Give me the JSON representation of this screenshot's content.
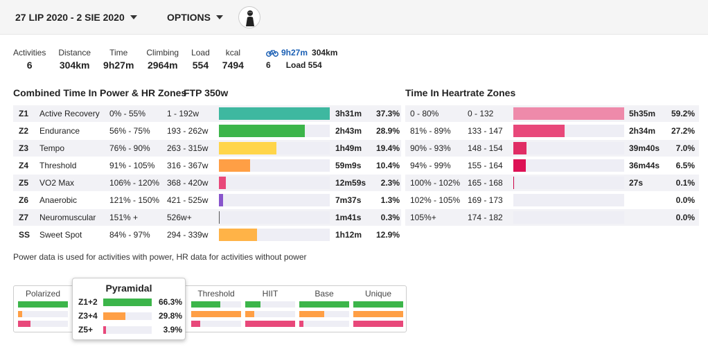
{
  "header": {
    "date_range": "27 LIP 2020 - 2 SIE 2020",
    "options_label": "OPTIONS"
  },
  "stats": [
    {
      "label": "Activities",
      "value": "6"
    },
    {
      "label": "Distance",
      "value": "304km"
    },
    {
      "label": "Time",
      "value": "9h27m"
    },
    {
      "label": "Climbing",
      "value": "2964m"
    },
    {
      "label": "Load",
      "value": "554"
    },
    {
      "label": "kcal",
      "value": "7494"
    }
  ],
  "activity": {
    "icon": "bike-icon",
    "time": "9h27m",
    "distance": "304km",
    "count": "6",
    "load": "Load 554"
  },
  "power": {
    "title": "Combined Time In Power & HR Zones",
    "ftp": "FTP 350w",
    "rows": [
      {
        "zone": "Z1",
        "name": "Active Recovery",
        "pct_range": "0% - 55%",
        "watts": "1 - 192w",
        "time": "3h31m",
        "pct": "37.3%",
        "fill": 1.0,
        "color": "#3eb8a0"
      },
      {
        "zone": "Z2",
        "name": "Endurance",
        "pct_range": "56% - 75%",
        "watts": "193 - 262w",
        "time": "2h43m",
        "pct": "28.9%",
        "fill": 0.775,
        "color": "#3cb54a"
      },
      {
        "zone": "Z3",
        "name": "Tempo",
        "pct_range": "76% - 90%",
        "watts": "263 - 315w",
        "time": "1h49m",
        "pct": "19.4%",
        "fill": 0.52,
        "color": "#ffd54a"
      },
      {
        "zone": "Z4",
        "name": "Threshold",
        "pct_range": "91% - 105%",
        "watts": "316 - 367w",
        "time": "59m9s",
        "pct": "10.4%",
        "fill": 0.28,
        "color": "#ff9f45"
      },
      {
        "zone": "Z5",
        "name": "VO2 Max",
        "pct_range": "106% - 120%",
        "watts": "368 - 420w",
        "time": "12m59s",
        "pct": "2.3%",
        "fill": 0.063,
        "color": "#e8487a"
      },
      {
        "zone": "Z6",
        "name": "Anaerobic",
        "pct_range": "121% - 150%",
        "watts": "421 - 525w",
        "time": "7m37s",
        "pct": "1.3%",
        "fill": 0.035,
        "color": "#8855cc"
      },
      {
        "zone": "Z7",
        "name": "Neuromuscular",
        "pct_range": "151% +",
        "watts": "526w+",
        "time": "1m41s",
        "pct": "0.3%",
        "fill": 0.008,
        "color": "#555555"
      },
      {
        "zone": "SS",
        "name": "Sweet Spot",
        "pct_range": "84% - 97%",
        "watts": "294 - 339w",
        "time": "1h12m",
        "pct": "12.9%",
        "fill": 0.345,
        "color": "#ffb347"
      }
    ]
  },
  "hr": {
    "title": "Time In Heartrate Zones",
    "rows": [
      {
        "pct_range": "0 - 80%",
        "bpm": "0 - 132",
        "time": "5h35m",
        "pct": "59.2%",
        "fill": 1.0,
        "color": "#ee8aaa"
      },
      {
        "pct_range": "81% - 89%",
        "bpm": "133 - 147",
        "time": "2h34m",
        "pct": "27.2%",
        "fill": 0.46,
        "color": "#e8487a"
      },
      {
        "pct_range": "90% - 93%",
        "bpm": "148 - 154",
        "time": "39m40s",
        "pct": "7.0%",
        "fill": 0.12,
        "color": "#e02d65"
      },
      {
        "pct_range": "94% - 99%",
        "bpm": "155 - 164",
        "time": "36m44s",
        "pct": "6.5%",
        "fill": 0.11,
        "color": "#dd1155"
      },
      {
        "pct_range": "100% - 102%",
        "bpm": "165 - 168",
        "time": "27s",
        "pct": "0.1%",
        "fill": 0.006,
        "color": "#cc0044"
      },
      {
        "pct_range": "102% - 105%",
        "bpm": "169 - 173",
        "time": "",
        "pct": "0.0%",
        "fill": 0,
        "color": "#cc0044"
      },
      {
        "pct_range": "105%+",
        "bpm": "174 - 182",
        "time": "",
        "pct": "0.0%",
        "fill": 0,
        "color": "#cc0044"
      }
    ]
  },
  "note": "Power data is used for activities with power, HR data for activities without power",
  "distribution": {
    "columns": [
      {
        "label": "Polarized",
        "fills": [
          1.0,
          0.08,
          0.25
        ]
      },
      {
        "label": "",
        "fills": [
          0,
          0,
          0
        ]
      },
      {
        "label": "Threshold",
        "fills": [
          0.58,
          1.0,
          0.18
        ]
      },
      {
        "label": "HIIT",
        "fills": [
          0.3,
          0.18,
          1.0
        ]
      },
      {
        "label": "Base",
        "fills": [
          1.0,
          0.5,
          0.08
        ]
      },
      {
        "label": "Unique",
        "fills": [
          1.0,
          1.0,
          1.0
        ]
      }
    ],
    "colors": [
      "#3cb54a",
      "#ff9f45",
      "#e8487a"
    ],
    "popup": {
      "title": "Pyramidal",
      "rows": [
        {
          "label": "Z1+2",
          "value": "66.3%",
          "fill": 1.0,
          "color": "#3cb54a"
        },
        {
          "label": "Z3+4",
          "value": "29.8%",
          "fill": 0.45,
          "color": "#ff9f45"
        },
        {
          "label": "Z5+",
          "value": "3.9%",
          "fill": 0.06,
          "color": "#e8487a"
        }
      ]
    }
  }
}
